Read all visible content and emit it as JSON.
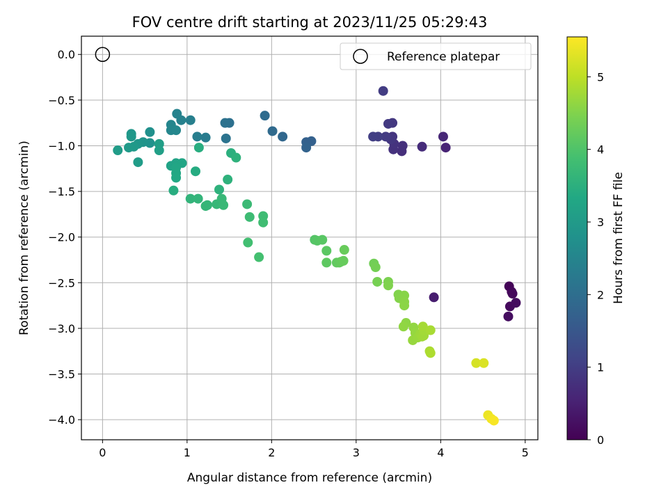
{
  "chart_data": {
    "type": "scatter",
    "title": "FOV centre drift starting at 2023/11/25 05:29:43",
    "xlabel": "Angular distance from reference (arcmin)",
    "ylabel": "Rotation from reference (arcmin)",
    "xlim": [
      -0.25,
      5.15
    ],
    "ylim": [
      -4.22,
      0.2
    ],
    "x_ticks": [
      0,
      1,
      2,
      3,
      4,
      5
    ],
    "y_ticks": [
      0.0,
      -0.5,
      -1.0,
      -1.5,
      -2.0,
      -2.5,
      -3.0,
      -3.5,
      -4.0
    ],
    "x_tick_labels": [
      "0",
      "1",
      "2",
      "3",
      "4",
      "5"
    ],
    "y_tick_labels": [
      "0.0",
      "−0.5",
      "−1.0",
      "−1.5",
      "−2.0",
      "−2.5",
      "−3.0",
      "−3.5",
      "−4.0"
    ],
    "grid": true,
    "legend": {
      "placement": "top-right",
      "entries": [
        "Reference platepar"
      ]
    },
    "reference_point": {
      "x": 0.0,
      "y": 0.0
    },
    "colorbar": {
      "label": "Hours from first FF file",
      "range": [
        0,
        5.55
      ],
      "ticks": [
        0,
        1,
        2,
        3,
        4,
        5
      ],
      "tick_labels": [
        "0",
        "1",
        "2",
        "3",
        "4",
        "5"
      ],
      "colormap": "viridis"
    },
    "series": [
      {
        "points": [
          [
            4.81,
            -2.54,
            0.05
          ],
          [
            4.84,
            -2.6,
            0.1
          ],
          [
            4.85,
            -2.62,
            0.12
          ],
          [
            4.82,
            -2.76,
            0.15
          ],
          [
            4.89,
            -2.72,
            0.18
          ],
          [
            4.8,
            -2.87,
            0.2
          ],
          [
            3.92,
            -2.66,
            0.45
          ],
          [
            4.06,
            -1.02,
            0.55
          ],
          [
            4.03,
            -0.9,
            0.6
          ],
          [
            3.78,
            -1.01,
            0.7
          ],
          [
            3.54,
            -1.06,
            0.75
          ],
          [
            3.55,
            -1.0,
            0.78
          ],
          [
            3.44,
            -1.04,
            0.8
          ],
          [
            3.45,
            -0.98,
            0.82
          ],
          [
            3.43,
            -0.9,
            0.85
          ],
          [
            3.41,
            -0.93,
            0.88
          ],
          [
            3.43,
            -0.75,
            0.9
          ],
          [
            3.38,
            -0.76,
            0.92
          ],
          [
            3.35,
            -0.9,
            0.95
          ],
          [
            3.32,
            -0.4,
            0.98
          ],
          [
            3.26,
            -0.9,
            1.0
          ],
          [
            3.2,
            -0.9,
            1.02
          ],
          [
            2.47,
            -0.95,
            1.7
          ],
          [
            2.41,
            -0.96,
            1.72
          ],
          [
            2.41,
            -1.02,
            1.75
          ],
          [
            2.13,
            -0.9,
            1.85
          ],
          [
            2.01,
            -0.84,
            1.9
          ],
          [
            1.92,
            -0.67,
            1.95
          ],
          [
            1.5,
            -0.75,
            2.05
          ],
          [
            1.45,
            -0.75,
            2.08
          ],
          [
            1.46,
            -0.92,
            2.1
          ],
          [
            1.22,
            -0.91,
            2.3
          ],
          [
            1.12,
            -0.9,
            2.35
          ],
          [
            1.04,
            -0.72,
            2.38
          ],
          [
            0.93,
            -0.72,
            2.42
          ],
          [
            0.88,
            -0.65,
            2.45
          ],
          [
            0.81,
            -0.77,
            2.5
          ],
          [
            0.81,
            -0.83,
            2.52
          ],
          [
            0.87,
            -0.83,
            2.55
          ],
          [
            0.56,
            -0.85,
            2.75
          ],
          [
            0.56,
            -0.97,
            2.8
          ],
          [
            0.48,
            -0.96,
            2.85
          ],
          [
            0.42,
            -0.98,
            2.9
          ],
          [
            0.34,
            -0.87,
            2.92
          ],
          [
            0.34,
            -0.9,
            2.95
          ],
          [
            0.37,
            -1.01,
            2.97
          ],
          [
            0.31,
            -1.02,
            3.0
          ],
          [
            0.18,
            -1.05,
            3.05
          ],
          [
            0.42,
            -1.18,
            3.05
          ],
          [
            0.67,
            -0.98,
            3.1
          ],
          [
            0.67,
            -1.05,
            3.12
          ],
          [
            0.81,
            -1.22,
            3.2
          ],
          [
            0.87,
            -1.19,
            3.22
          ],
          [
            0.94,
            -1.19,
            3.25
          ],
          [
            0.87,
            -1.24,
            3.28
          ],
          [
            0.87,
            -1.3,
            3.3
          ],
          [
            0.87,
            -1.35,
            3.32
          ],
          [
            1.1,
            -1.28,
            3.4
          ],
          [
            1.14,
            -1.02,
            3.45
          ],
          [
            0.84,
            -1.49,
            3.45
          ],
          [
            1.52,
            -1.08,
            3.5
          ],
          [
            1.58,
            -1.13,
            3.55
          ],
          [
            1.48,
            -1.37,
            3.55
          ],
          [
            1.38,
            -1.48,
            3.55
          ],
          [
            1.04,
            -1.58,
            3.6
          ],
          [
            1.13,
            -1.58,
            3.62
          ],
          [
            1.22,
            -1.66,
            3.65
          ],
          [
            1.24,
            -1.65,
            3.65
          ],
          [
            1.35,
            -1.64,
            3.68
          ],
          [
            1.41,
            -1.58,
            3.7
          ],
          [
            1.43,
            -1.65,
            3.72
          ],
          [
            1.71,
            -1.64,
            3.75
          ],
          [
            1.74,
            -1.78,
            3.78
          ],
          [
            1.9,
            -1.77,
            3.8
          ],
          [
            1.9,
            -1.84,
            3.82
          ],
          [
            1.72,
            -2.06,
            3.85
          ],
          [
            1.85,
            -2.22,
            3.88
          ],
          [
            2.51,
            -2.03,
            4.05
          ],
          [
            2.54,
            -2.04,
            4.08
          ],
          [
            2.6,
            -2.03,
            4.1
          ],
          [
            2.65,
            -2.15,
            4.12
          ],
          [
            2.65,
            -2.28,
            4.15
          ],
          [
            2.77,
            -2.28,
            4.18
          ],
          [
            2.8,
            -2.28,
            4.2
          ],
          [
            2.82,
            -2.27,
            4.22
          ],
          [
            2.85,
            -2.26,
            4.24
          ],
          [
            2.86,
            -2.14,
            4.26
          ],
          [
            3.21,
            -2.29,
            4.35
          ],
          [
            3.23,
            -2.33,
            4.38
          ],
          [
            3.25,
            -2.49,
            4.4
          ],
          [
            3.38,
            -2.49,
            4.45
          ],
          [
            3.38,
            -2.53,
            4.48
          ],
          [
            3.5,
            -2.63,
            4.5
          ],
          [
            3.51,
            -2.67,
            4.52
          ],
          [
            3.57,
            -2.64,
            4.55
          ],
          [
            3.57,
            -2.71,
            4.57
          ],
          [
            3.57,
            -2.75,
            4.58
          ],
          [
            3.59,
            -2.94,
            4.6
          ],
          [
            3.56,
            -2.98,
            4.62
          ],
          [
            3.68,
            -2.99,
            4.64
          ],
          [
            3.7,
            -3.05,
            4.66
          ],
          [
            3.67,
            -3.13,
            4.68
          ],
          [
            3.73,
            -3.1,
            4.7
          ],
          [
            3.76,
            -3.06,
            4.72
          ],
          [
            3.78,
            -3.09,
            4.74
          ],
          [
            3.8,
            -3.08,
            4.76
          ],
          [
            3.8,
            -3.02,
            4.78
          ],
          [
            3.79,
            -2.98,
            4.8
          ],
          [
            3.88,
            -3.02,
            4.82
          ],
          [
            3.87,
            -3.25,
            4.84
          ],
          [
            3.88,
            -3.27,
            4.86
          ],
          [
            4.42,
            -3.38,
            5.2
          ],
          [
            4.51,
            -3.38,
            5.25
          ],
          [
            4.56,
            -3.95,
            5.4
          ],
          [
            4.6,
            -3.99,
            5.45
          ],
          [
            4.63,
            -4.01,
            5.5
          ]
        ]
      }
    ]
  }
}
